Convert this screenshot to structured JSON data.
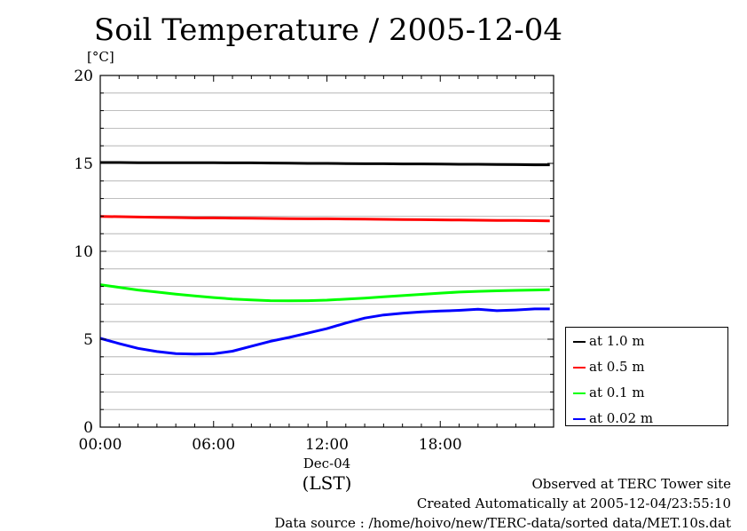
{
  "title": "Soil Temperature / 2005-12-04",
  "footer": {
    "observed": "Observed at TERC Tower site",
    "created": "Created Automatically at 2005-12-04/23:55:10",
    "source": "Data source : /home/hoivo/new/TERC-data/sorted  data/MET.10s.dat"
  },
  "chart_data": {
    "type": "line",
    "title": "Soil Temperature / 2005-12-04",
    "ylabel": "[°C]",
    "xlabel": "(LST)",
    "xdate_label": "Dec-04",
    "ylim": [
      0,
      20
    ],
    "xlim": [
      0,
      24
    ],
    "y_ticks": [
      "0",
      "5",
      "10",
      "15",
      "20"
    ],
    "x_ticks": [
      "00:00",
      "06:00",
      "12:00",
      "18:00"
    ],
    "x_tick_values": [
      0,
      6,
      12,
      18
    ],
    "grid": true,
    "legend_position": "bottom-right, outside plot",
    "x": [
      0,
      1,
      2,
      3,
      4,
      5,
      6,
      7,
      8,
      9,
      10,
      11,
      12,
      13,
      14,
      15,
      16,
      17,
      18,
      19,
      20,
      21,
      22,
      23,
      23.8
    ],
    "series": [
      {
        "name": "at 1.0 m",
        "color": "#000000",
        "values": [
          15.05,
          15.05,
          15.04,
          15.04,
          15.04,
          15.04,
          15.04,
          15.03,
          15.03,
          15.02,
          15.01,
          15.0,
          15.0,
          14.99,
          14.98,
          14.98,
          14.97,
          14.97,
          14.96,
          14.95,
          14.95,
          14.94,
          14.93,
          14.92,
          14.92
        ]
      },
      {
        "name": "at 0.5 m",
        "color": "#ff0000",
        "values": [
          11.98,
          11.97,
          11.95,
          11.93,
          11.92,
          11.9,
          11.9,
          11.89,
          11.88,
          11.87,
          11.86,
          11.85,
          11.85,
          11.84,
          11.83,
          11.82,
          11.81,
          11.8,
          11.79,
          11.78,
          11.77,
          11.76,
          11.75,
          11.74,
          11.73
        ]
      },
      {
        "name": "at 0.1 m",
        "color": "#00ff00",
        "values": [
          8.1,
          7.95,
          7.8,
          7.68,
          7.56,
          7.46,
          7.37,
          7.29,
          7.23,
          7.19,
          7.18,
          7.19,
          7.22,
          7.28,
          7.34,
          7.41,
          7.48,
          7.55,
          7.62,
          7.68,
          7.72,
          7.75,
          7.78,
          7.8,
          7.82
        ]
      },
      {
        "name": "at 0.02 m",
        "color": "#0000ff",
        "values": [
          5.05,
          4.75,
          4.48,
          4.3,
          4.18,
          4.15,
          4.17,
          4.32,
          4.6,
          4.88,
          5.1,
          5.35,
          5.6,
          5.92,
          6.2,
          6.38,
          6.48,
          6.55,
          6.6,
          6.64,
          6.7,
          6.62,
          6.66,
          6.72,
          6.72
        ]
      }
    ]
  }
}
